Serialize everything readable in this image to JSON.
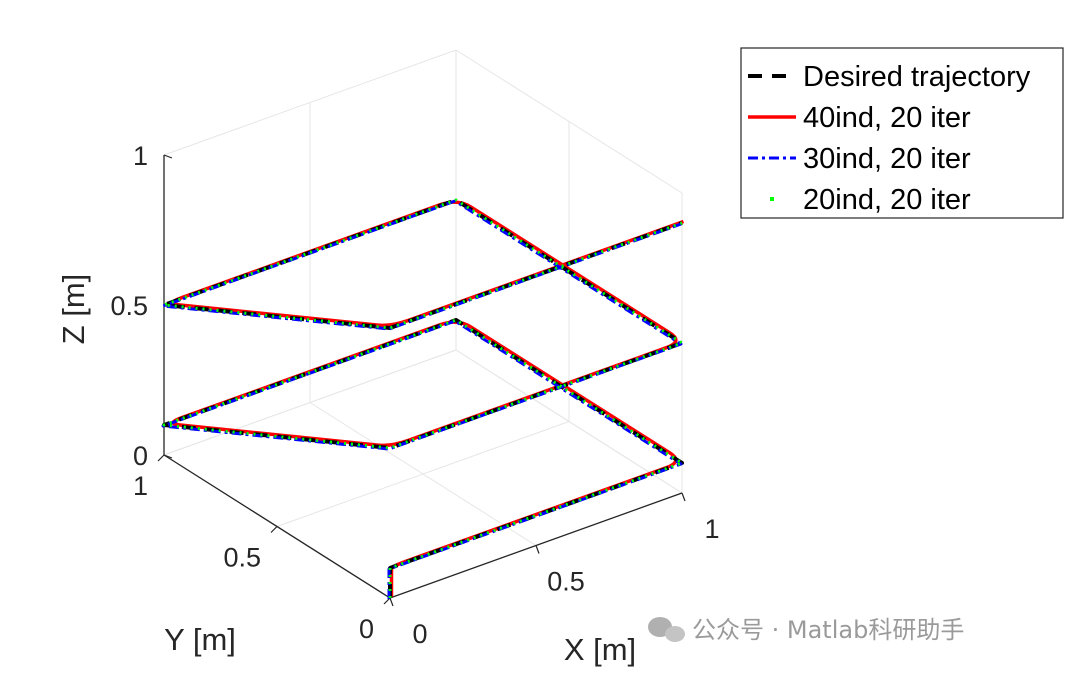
{
  "chart_data": {
    "type": "line3d",
    "xlabel": "X [m]",
    "ylabel": "Y [m]",
    "zlabel": "Z [m]",
    "xlim": [
      0,
      1
    ],
    "ylim": [
      0,
      1
    ],
    "zlim": [
      0,
      1
    ],
    "x_ticks": [
      "0",
      "0.5",
      "1"
    ],
    "y_ticks": [
      "0",
      "0.5",
      "1"
    ],
    "z_ticks": [
      "0",
      "0.5",
      "1"
    ],
    "grid": true,
    "legend_position": "top-right",
    "series": [
      {
        "name": "Desired trajectory",
        "color": "#000000",
        "style": "dashed"
      },
      {
        "name": "40ind, 20 iter",
        "color": "#ff0000",
        "style": "solid"
      },
      {
        "name": "30ind, 20 iter",
        "color": "#0000ff",
        "style": "dashdot"
      },
      {
        "name": "20ind, 20 iter",
        "color": "#00ff00",
        "style": "dotted"
      }
    ],
    "trajectory": {
      "x": [
        0,
        0,
        1,
        1,
        0,
        0,
        1,
        1,
        0,
        0,
        1
      ],
      "y": [
        0,
        0,
        0,
        1,
        1,
        0,
        0,
        1,
        1,
        0,
        0
      ],
      "z": [
        0,
        0.1,
        0.1,
        0.1,
        0.1,
        0.5,
        0.5,
        0.5,
        0.5,
        0.9,
        0.9
      ]
    }
  },
  "watermark": {
    "icon": "wechat-icon",
    "text": "公众号 · Matlab科研助手"
  }
}
